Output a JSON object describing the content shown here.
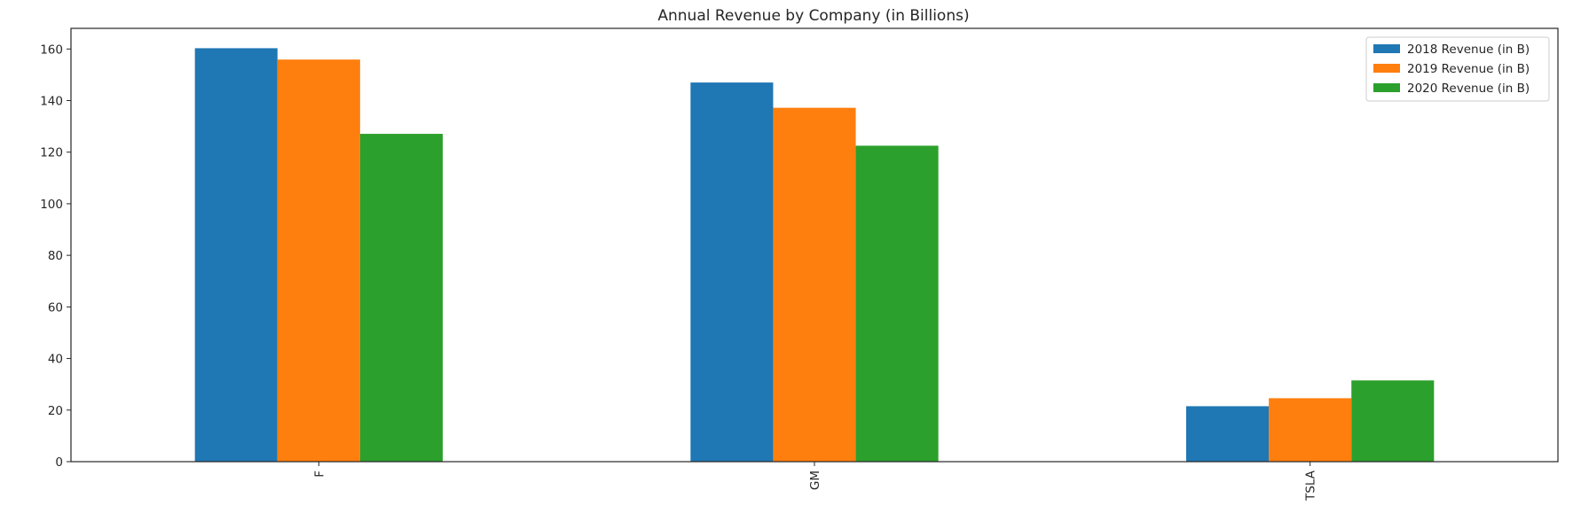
{
  "chart_data": {
    "type": "bar",
    "title": "Annual Revenue by Company (in Billions)",
    "xlabel": "",
    "ylabel": "",
    "categories": [
      "F",
      "GM",
      "TSLA"
    ],
    "series": [
      {
        "name": "2018 Revenue (in B)",
        "color": "#1f77b4",
        "values": [
          160.3,
          147.0,
          21.5
        ]
      },
      {
        "name": "2019 Revenue (in B)",
        "color": "#ff7f0e",
        "values": [
          155.9,
          137.2,
          24.6
        ]
      },
      {
        "name": "2020 Revenue (in B)",
        "color": "#2ca02c",
        "values": [
          127.1,
          122.5,
          31.5
        ]
      }
    ],
    "ylim": [
      0,
      168
    ],
    "yticks": [
      0,
      20,
      40,
      60,
      80,
      100,
      120,
      140,
      160
    ],
    "grid": false,
    "legend_position": "top-right",
    "x_tick_rotation": "vertical"
  }
}
